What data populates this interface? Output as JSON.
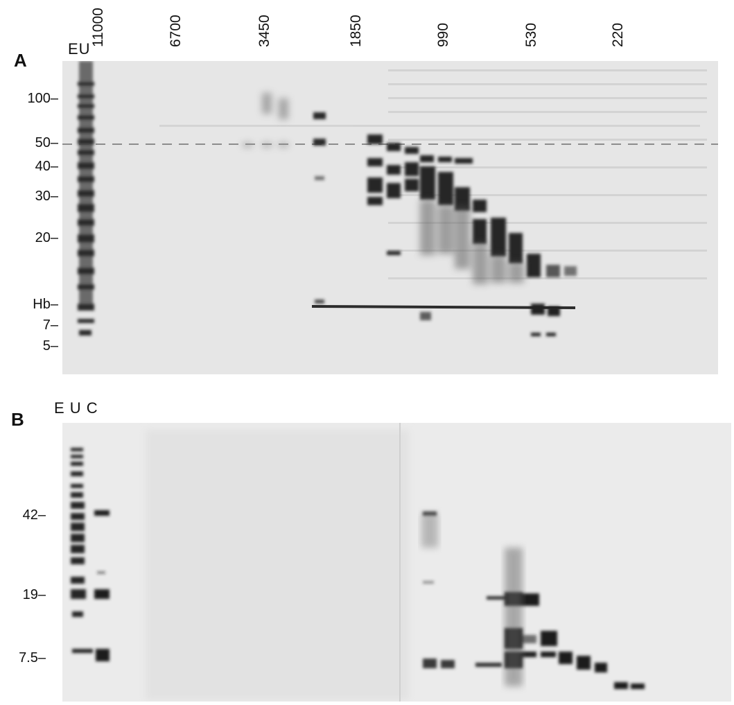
{
  "panel_a": {
    "letter": "A",
    "lane_header": "EU",
    "size_labels": [
      "11000",
      "6700",
      "3450",
      "1850",
      "990",
      "530",
      "220"
    ],
    "markers": [
      "100–",
      "50–",
      "40–",
      "30–",
      "20–",
      "Hb–",
      "7–",
      "5–"
    ]
  },
  "panel_b": {
    "letter": "B",
    "lane_header": "E U C",
    "markers": [
      "42–",
      "19–",
      "7.5–"
    ]
  },
  "colors": {
    "gel_background": "#e8e8e8",
    "band": "#1c1c1c"
  }
}
